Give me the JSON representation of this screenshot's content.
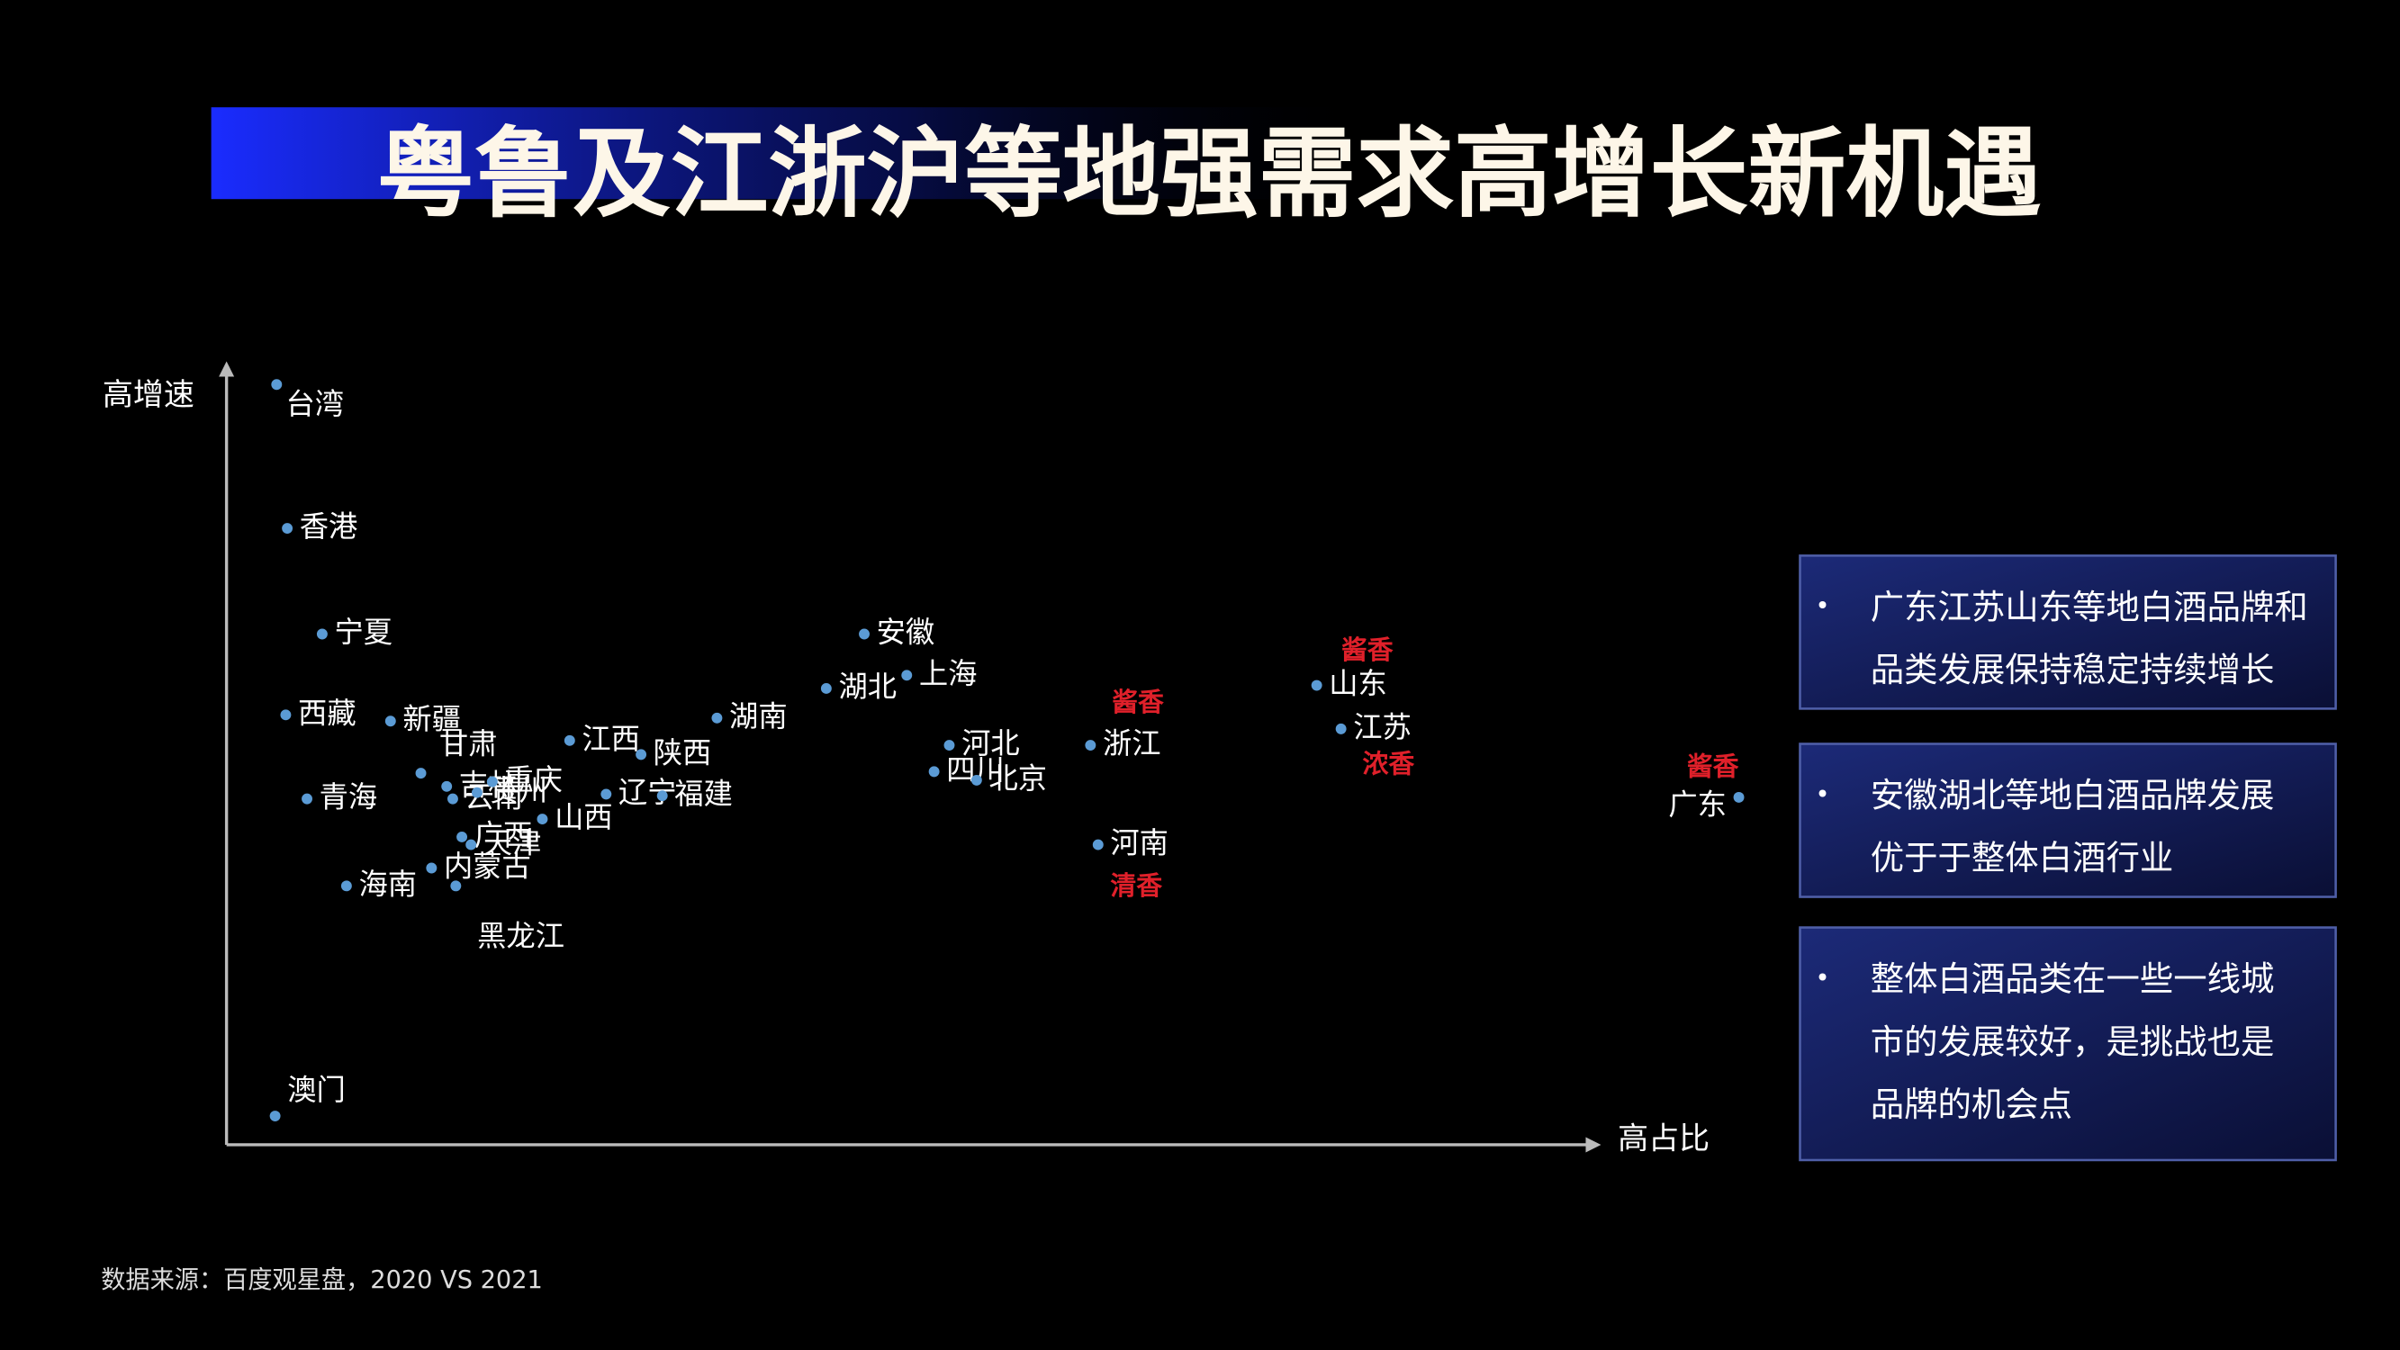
{
  "chart_data": {
    "type": "scatter",
    "title": "粤鲁及江浙沪等地强需求高增长新机遇",
    "x_label": "高占比",
    "y_label": "高增速",
    "xlim": [
      0,
      100
    ],
    "ylim": [
      0,
      100
    ],
    "color": "#5b9bd5",
    "tag_color": "#e0202a",
    "point_labels": [
      "台湾",
      "香港",
      "宁夏",
      "西藏",
      "新疆",
      "甘肃",
      "吉林",
      "云南",
      "贵州",
      "重庆",
      "江西",
      "陕西",
      "湖南",
      "辽宁",
      "福建",
      "山西",
      "青海",
      "广西",
      "天津",
      "海南",
      "内蒙古",
      "黑龙江",
      "澳门",
      "安徽",
      "湖北",
      "上海",
      "河北",
      "四川",
      "北京",
      "浙江",
      "河南",
      "山东",
      "江苏",
      "广东"
    ],
    "x": [
      3.3,
      4.0,
      6.3,
      3.9,
      10.8,
      12.8,
      14.5,
      14.9,
      16.5,
      17.5,
      22.6,
      27.3,
      32.3,
      25.0,
      28.7,
      20.8,
      5.3,
      15.5,
      16.1,
      7.9,
      13.5,
      15.1,
      3.2,
      42.0,
      39.5,
      44.8,
      47.6,
      46.6,
      49.4,
      56.9,
      57.4,
      71.8,
      73.4,
      99.6
    ],
    "values": [
      97.8,
      79.3,
      65.7,
      55.3,
      54.5,
      47.8,
      46.1,
      44.5,
      45.3,
      46.7,
      52.0,
      50.2,
      54.9,
      45.1,
      44.9,
      41.9,
      44.5,
      39.6,
      38.6,
      33.3,
      35.6,
      33.3,
      3.7,
      65.7,
      58.7,
      60.4,
      51.4,
      48.0,
      46.9,
      51.4,
      38.6,
      59.1,
      53.5,
      44.7
    ],
    "tags": [
      null,
      null,
      null,
      null,
      null,
      null,
      null,
      null,
      null,
      null,
      null,
      null,
      null,
      null,
      null,
      null,
      null,
      null,
      null,
      null,
      null,
      null,
      null,
      null,
      null,
      null,
      null,
      null,
      null,
      "酱香",
      "清香",
      "酱香",
      "浓香",
      "酱香"
    ]
  },
  "notes": [
    [
      "广东江苏山东等地白酒品牌和",
      "品类发展保持稳定持续增长"
    ],
    [
      "安徽湖北等地白酒品牌发展",
      "优于于整体白酒行业"
    ],
    [
      "整体白酒品类在一些一线城",
      "市的发展较好，是挑战也是",
      "品牌的机会点"
    ]
  ],
  "bullet": "•",
  "source": "数据来源：百度观星盘，2020 VS 2021"
}
